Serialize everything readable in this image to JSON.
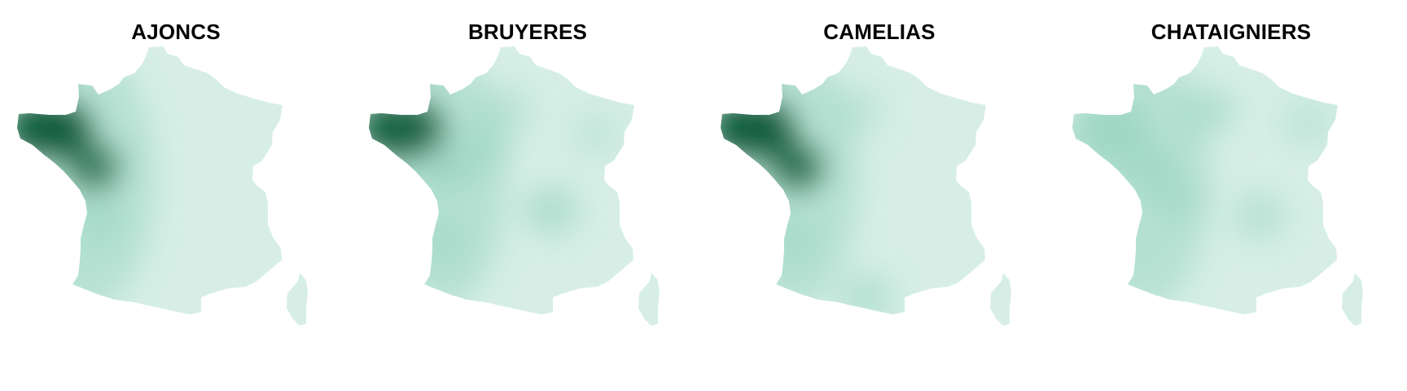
{
  "panels": [
    {
      "title": "AJONCS",
      "hotspots": [
        {
          "place": "Bretagne",
          "level": 1.0
        },
        {
          "place": "Pays de la Loire",
          "level": 0.75
        },
        {
          "place": "Atlantic coast",
          "level": 0.35
        }
      ]
    },
    {
      "title": "BRUYERES",
      "hotspots": [
        {
          "place": "Bretagne",
          "level": 0.95
        },
        {
          "place": "Pays de la Loire",
          "level": 0.55
        },
        {
          "place": "Auvergne",
          "level": 0.55
        },
        {
          "place": "Centre",
          "level": 0.35
        },
        {
          "place": "Ile-de-France",
          "level": 0.35
        },
        {
          "place": "Alsace-Lorraine",
          "level": 0.25
        },
        {
          "place": "Aquitaine",
          "level": 0.3
        }
      ]
    },
    {
      "title": "CAMELIAS",
      "hotspots": [
        {
          "place": "Bretagne",
          "level": 1.0
        },
        {
          "place": "Pays de la Loire",
          "level": 0.85
        },
        {
          "place": "Languedoc",
          "level": 0.45
        },
        {
          "place": "Ile-de-France",
          "level": 0.3
        },
        {
          "place": "Aquitaine",
          "level": 0.3
        }
      ]
    },
    {
      "title": "CHATAIGNIERS",
      "hotspots": [
        {
          "place": "Bretagne",
          "level": 0.6
        },
        {
          "place": "Pays de la Loire",
          "level": 0.5
        },
        {
          "place": "Ile-de-France",
          "level": 0.45
        },
        {
          "place": "Rhone-Alpes",
          "level": 0.4
        },
        {
          "place": "Alsace",
          "level": 0.3
        },
        {
          "place": "Limousin",
          "level": 0.3
        }
      ]
    }
  ],
  "colors": {
    "low": "#d6eee6",
    "mid": "#8fd0bb",
    "high": "#0f5c3a",
    "title": "#000000"
  }
}
